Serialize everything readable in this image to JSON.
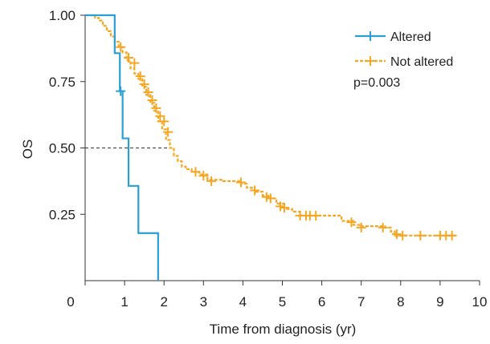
{
  "chart_data": {
    "type": "line",
    "xlabel": "Time from diagnosis (yr)",
    "ylabel": "OS",
    "xlim": [
      0,
      10
    ],
    "ylim": [
      0,
      1
    ],
    "x_ticks": [
      "0",
      "1",
      "2",
      "3",
      "4",
      "5",
      "6",
      "7",
      "8",
      "9",
      "10"
    ],
    "y_ticks": [
      {
        "value": 0.25,
        "label": "0.25"
      },
      {
        "value": 0.5,
        "label": "0.50"
      },
      {
        "value": 0.75,
        "label": "0.75"
      },
      {
        "value": 1.0,
        "label": "1.00"
      }
    ],
    "grid": false,
    "legend_position": "top-right",
    "annotation": "p=0.003",
    "median_reference": {
      "y": 0.5,
      "x_end": 2.1
    },
    "series": [
      {
        "name": "Altered",
        "color": "#2a9fd6",
        "style": "solid",
        "steps": [
          [
            0,
            1.0
          ],
          [
            0.75,
            1.0
          ],
          [
            0.75,
            0.857
          ],
          [
            0.88,
            0.857
          ],
          [
            0.88,
            0.714
          ],
          [
            0.95,
            0.714
          ],
          [
            0.95,
            0.536
          ],
          [
            1.1,
            0.536
          ],
          [
            1.1,
            0.357
          ],
          [
            1.35,
            0.357
          ],
          [
            1.35,
            0.179
          ],
          [
            1.85,
            0.179
          ],
          [
            1.85,
            0.0
          ]
        ],
        "censors": [
          [
            0.9,
            0.714
          ]
        ]
      },
      {
        "name": "Not altered",
        "color": "#f5a623",
        "style": "dashed",
        "steps": [
          [
            0,
            1.0
          ],
          [
            0.25,
            0.99
          ],
          [
            0.35,
            0.98
          ],
          [
            0.45,
            0.96
          ],
          [
            0.55,
            0.94
          ],
          [
            0.65,
            0.92
          ],
          [
            0.75,
            0.9
          ],
          [
            0.85,
            0.88
          ],
          [
            0.95,
            0.86
          ],
          [
            1.05,
            0.83
          ],
          [
            1.15,
            0.8
          ],
          [
            1.25,
            0.78
          ],
          [
            1.35,
            0.76
          ],
          [
            1.45,
            0.73
          ],
          [
            1.55,
            0.7
          ],
          [
            1.65,
            0.67
          ],
          [
            1.75,
            0.64
          ],
          [
            1.85,
            0.6
          ],
          [
            1.95,
            0.57
          ],
          [
            2.05,
            0.53
          ],
          [
            2.15,
            0.5
          ],
          [
            2.25,
            0.47
          ],
          [
            2.35,
            0.45
          ],
          [
            2.45,
            0.43
          ],
          [
            2.55,
            0.42
          ],
          [
            2.7,
            0.41
          ],
          [
            2.9,
            0.4
          ],
          [
            3.1,
            0.38
          ],
          [
            3.5,
            0.375
          ],
          [
            3.8,
            0.375
          ],
          [
            3.95,
            0.365
          ],
          [
            4.1,
            0.35
          ],
          [
            4.3,
            0.335
          ],
          [
            4.5,
            0.32
          ],
          [
            4.7,
            0.31
          ],
          [
            4.85,
            0.29
          ],
          [
            5.05,
            0.27
          ],
          [
            5.25,
            0.26
          ],
          [
            5.45,
            0.245
          ],
          [
            6.0,
            0.245
          ],
          [
            6.5,
            0.225
          ],
          [
            6.8,
            0.21
          ],
          [
            7.0,
            0.205
          ],
          [
            7.6,
            0.2
          ],
          [
            7.75,
            0.185
          ],
          [
            7.85,
            0.17
          ],
          [
            9.4,
            0.17
          ]
        ],
        "censors": [
          [
            0.9,
            0.88
          ],
          [
            1.1,
            0.84
          ],
          [
            1.25,
            0.82
          ],
          [
            1.4,
            0.77
          ],
          [
            1.5,
            0.74
          ],
          [
            1.6,
            0.71
          ],
          [
            1.7,
            0.68
          ],
          [
            1.8,
            0.65
          ],
          [
            1.9,
            0.62
          ],
          [
            2.0,
            0.6
          ],
          [
            2.1,
            0.56
          ],
          [
            2.8,
            0.41
          ],
          [
            3.0,
            0.395
          ],
          [
            3.2,
            0.375
          ],
          [
            3.95,
            0.37
          ],
          [
            4.3,
            0.34
          ],
          [
            4.6,
            0.315
          ],
          [
            4.7,
            0.31
          ],
          [
            4.95,
            0.28
          ],
          [
            5.05,
            0.275
          ],
          [
            5.45,
            0.245
          ],
          [
            5.6,
            0.245
          ],
          [
            5.7,
            0.245
          ],
          [
            5.85,
            0.245
          ],
          [
            6.75,
            0.22
          ],
          [
            7.0,
            0.2
          ],
          [
            7.55,
            0.2
          ],
          [
            7.9,
            0.175
          ],
          [
            8.05,
            0.17
          ],
          [
            8.5,
            0.17
          ],
          [
            9.0,
            0.17
          ],
          [
            9.15,
            0.17
          ],
          [
            9.3,
            0.17
          ]
        ]
      }
    ]
  }
}
